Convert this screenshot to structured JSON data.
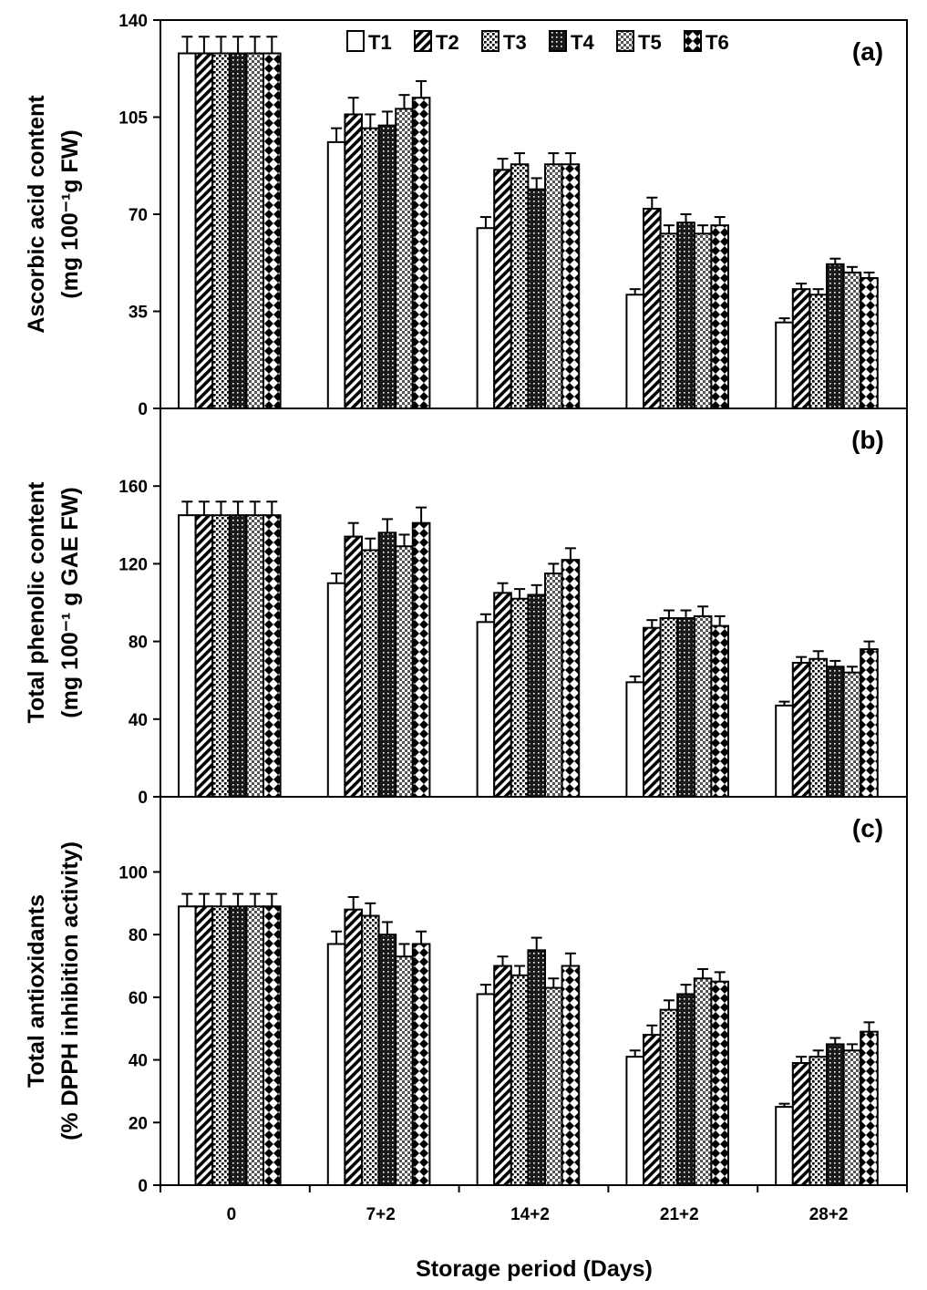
{
  "figure": {
    "xlabel": "Storage period (Days)",
    "categories": [
      "0",
      "7+2",
      "14+2",
      "21+2",
      "28+2"
    ],
    "legend": [
      "T1",
      "T2",
      "T3",
      "T4",
      "T5",
      "T6"
    ]
  },
  "chart_data": [
    {
      "type": "bar",
      "panel": "(a)",
      "ylabel_line1": "Ascorbic acid content",
      "ylabel_line2": "(mg 100⁻¹g FW)",
      "categories": [
        "0",
        "7+2",
        "14+2",
        "21+2",
        "28+2"
      ],
      "ylim": [
        0,
        140
      ],
      "yticks": [
        0,
        35,
        70,
        105,
        140
      ],
      "series": [
        {
          "name": "T1",
          "values": [
            128,
            96,
            65,
            41,
            31
          ],
          "errors": [
            6,
            5,
            4,
            2,
            1.5
          ]
        },
        {
          "name": "T2",
          "values": [
            128,
            106,
            86,
            72,
            43
          ],
          "errors": [
            6,
            6,
            4,
            4,
            2
          ]
        },
        {
          "name": "T3",
          "values": [
            128,
            101,
            88,
            63,
            41
          ],
          "errors": [
            6,
            5,
            4,
            3,
            2
          ]
        },
        {
          "name": "T4",
          "values": [
            128,
            102,
            79,
            67,
            52
          ],
          "errors": [
            6,
            5,
            4,
            3,
            2
          ]
        },
        {
          "name": "T5",
          "values": [
            128,
            108,
            88,
            63,
            49
          ],
          "errors": [
            6,
            5,
            4,
            3,
            2
          ]
        },
        {
          "name": "T6",
          "values": [
            128,
            112,
            88,
            66,
            47
          ],
          "errors": [
            6,
            6,
            4,
            3,
            2
          ]
        }
      ]
    },
    {
      "type": "bar",
      "panel": "(b)",
      "ylabel_line1": "Total phenolic content",
      "ylabel_line2": "(mg 100⁻¹ g GAE FW)",
      "categories": [
        "0",
        "7+2",
        "14+2",
        "21+2",
        "28+2"
      ],
      "ylim": [
        0,
        200
      ],
      "yticks": [
        0,
        40,
        80,
        120,
        160
      ],
      "series": [
        {
          "name": "T1",
          "values": [
            145,
            110,
            90,
            59,
            47
          ],
          "errors": [
            7,
            5,
            4,
            3,
            2
          ]
        },
        {
          "name": "T2",
          "values": [
            145,
            134,
            105,
            87,
            69
          ],
          "errors": [
            7,
            7,
            5,
            4,
            3
          ]
        },
        {
          "name": "T3",
          "values": [
            145,
            127,
            102,
            92,
            71
          ],
          "errors": [
            7,
            6,
            5,
            4,
            4
          ]
        },
        {
          "name": "T4",
          "values": [
            145,
            136,
            104,
            92,
            67
          ],
          "errors": [
            7,
            7,
            5,
            4,
            3
          ]
        },
        {
          "name": "T5",
          "values": [
            145,
            129,
            115,
            93,
            64
          ],
          "errors": [
            7,
            6,
            5,
            5,
            3
          ]
        },
        {
          "name": "T6",
          "values": [
            145,
            141,
            122,
            88,
            76
          ],
          "errors": [
            7,
            8,
            6,
            5,
            4
          ]
        }
      ]
    },
    {
      "type": "bar",
      "panel": "(c)",
      "ylabel_line1": "Total antioxidants",
      "ylabel_line2": "(% DPPH inhibition activity)",
      "categories": [
        "0",
        "7+2",
        "14+2",
        "21+2",
        "28+2"
      ],
      "ylim": [
        0,
        124
      ],
      "yticks": [
        0,
        20,
        40,
        60,
        80,
        100
      ],
      "series": [
        {
          "name": "T1",
          "values": [
            89,
            77,
            61,
            41,
            25
          ],
          "errors": [
            4,
            4,
            3,
            2,
            1
          ]
        },
        {
          "name": "T2",
          "values": [
            89,
            88,
            70,
            48,
            39
          ],
          "errors": [
            4,
            4,
            3,
            3,
            2
          ]
        },
        {
          "name": "T3",
          "values": [
            89,
            86,
            67,
            56,
            41
          ],
          "errors": [
            4,
            4,
            3,
            3,
            2
          ]
        },
        {
          "name": "T4",
          "values": [
            89,
            80,
            75,
            61,
            45
          ],
          "errors": [
            4,
            4,
            4,
            3,
            2
          ]
        },
        {
          "name": "T5",
          "values": [
            89,
            73,
            63,
            66,
            43
          ],
          "errors": [
            4,
            4,
            3,
            3,
            2
          ]
        },
        {
          "name": "T6",
          "values": [
            89,
            77,
            70,
            65,
            49
          ],
          "errors": [
            4,
            4,
            4,
            3,
            3
          ]
        }
      ]
    }
  ]
}
